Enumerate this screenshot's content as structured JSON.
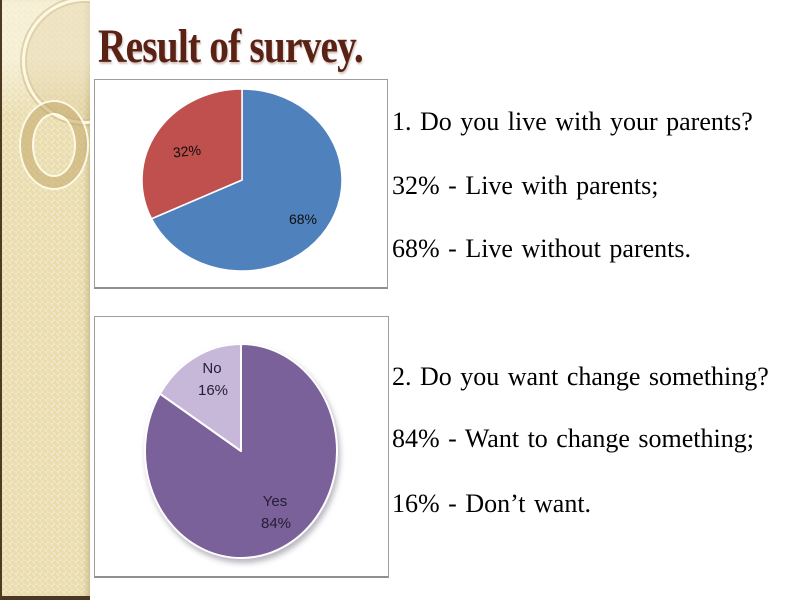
{
  "slide": {
    "title": "Result of survey.",
    "background_color": "#ffffff",
    "sidebar_color": "#eadcab",
    "title_color": "#5a2214",
    "panel_border_color": "#9d9d9d"
  },
  "qa_blocks": [
    {
      "question": "1. Do you live with your parents?",
      "answers": [
        "32% - Live with parents;",
        "68% - Live without parents."
      ]
    },
    {
      "question": "2. Do you want change something?",
      "answers": [
        "84% - Want to change something;",
        "16% - Don’t want."
      ]
    }
  ],
  "chart_data": [
    {
      "type": "pie",
      "title": "",
      "legend_position": "none",
      "start_angle_deg": 0,
      "direction": "clockwise",
      "slices": [
        {
          "label": "68%",
          "pct_label": "68%",
          "value": 68,
          "color": "#4f81bd"
        },
        {
          "label": "32%",
          "pct_label": "32%",
          "value": 32,
          "color": "#c0504d"
        }
      ]
    },
    {
      "type": "pie",
      "title": "",
      "legend_position": "none",
      "start_angle_deg": 0,
      "direction": "clockwise",
      "slices": [
        {
          "label": "Yes",
          "pct_label": "84%",
          "value": 84,
          "color": "#7a6199"
        },
        {
          "label": "No",
          "pct_label": "16%",
          "value": 16,
          "color": "#c7b8da"
        }
      ]
    }
  ]
}
